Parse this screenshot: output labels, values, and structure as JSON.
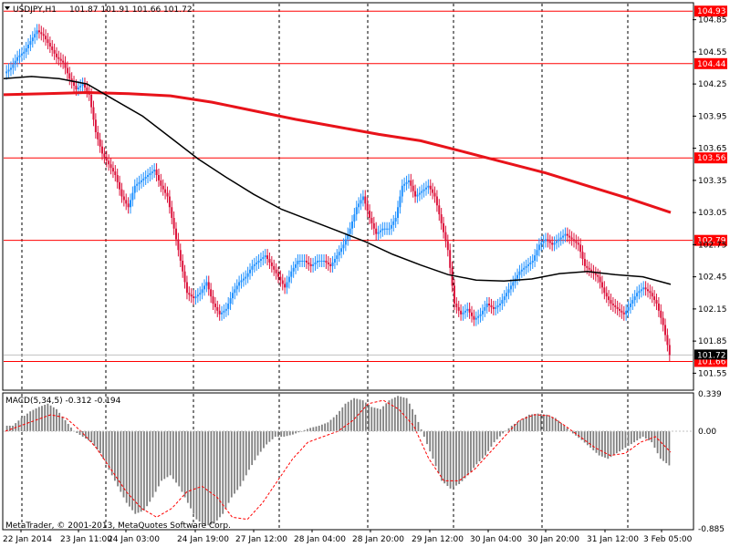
{
  "header": {
    "symbol_tf": "USDJPY,H1",
    "ohlc": "101.87 101.91 101.66 101.72"
  },
  "macd_header": "MACD(5,34,5) -0.312 -0.194",
  "watermark": "MetaTrader, © 2001-2013, MetaQuotes Software Corp.",
  "colors": {
    "up_candle": "#1e90ff",
    "down_candle": "#dc143c",
    "ma_fast": "#000000",
    "ma_slow": "#e8131a",
    "level": "#ff0000",
    "grid": "#000000",
    "macd_hist": "#808080",
    "macd_signal": "#ff0000"
  },
  "chart_data": [
    {
      "type": "candlestick",
      "title": "USDJPY,H1",
      "ylim": [
        101.4,
        105.0
      ],
      "y_ticks": [
        "104.85",
        "104.55",
        "104.25",
        "103.95",
        "103.65",
        "103.35",
        "103.05",
        "102.75",
        "102.45",
        "102.15",
        "101.85",
        "101.55"
      ],
      "x_labels": [
        "22 Jan 2014",
        "23 Jan 11:00",
        "24 Jan 03:00",
        "24 Jan 19:00",
        "27 Jan 12:00",
        "28 Jan 04:00",
        "28 Jan 20:00",
        "29 Jan 12:00",
        "30 Jan 04:00",
        "30 Jan 20:00",
        "31 Jan 12:00",
        "3 Feb 05:00"
      ],
      "levels": [
        {
          "label": "104.93",
          "value": 104.93
        },
        {
          "label": "104.44",
          "value": 104.44
        },
        {
          "label": "103.56",
          "value": 103.56
        },
        {
          "label": "102.79",
          "value": 102.79
        },
        {
          "label": "101.66",
          "value": 101.66
        }
      ],
      "current_price": "101.72",
      "close_series": [
        104.4,
        104.5,
        104.55,
        104.65,
        104.75,
        104.7,
        104.6,
        104.5,
        104.45,
        104.3,
        104.2,
        104.25,
        104.15,
        103.8,
        103.6,
        103.5,
        103.4,
        103.2,
        103.1,
        103.3,
        103.35,
        103.4,
        103.45,
        103.3,
        103.2,
        102.9,
        102.6,
        102.3,
        102.25,
        102.3,
        102.4,
        102.2,
        102.1,
        102.15,
        102.3,
        102.4,
        102.45,
        102.55,
        102.6,
        102.65,
        102.55,
        102.45,
        102.35,
        102.5,
        102.6,
        102.6,
        102.55,
        102.6,
        102.6,
        102.55,
        102.65,
        102.75,
        102.9,
        103.1,
        103.2,
        103.0,
        102.85,
        102.9,
        102.9,
        103.0,
        103.3,
        103.35,
        103.2,
        103.25,
        103.3,
        103.2,
        102.95,
        102.7,
        102.2,
        102.1,
        102.15,
        102.05,
        102.1,
        102.2,
        102.15,
        102.2,
        102.3,
        102.4,
        102.5,
        102.55,
        102.6,
        102.75,
        102.8,
        102.75,
        102.8,
        102.85,
        102.8,
        102.75,
        102.55,
        102.5,
        102.45,
        102.3,
        102.2,
        102.15,
        102.1,
        102.2,
        102.3,
        102.35,
        102.3,
        102.2,
        102.0,
        101.72
      ],
      "ma_fast_series": [
        104.3,
        104.32,
        104.3,
        104.25,
        104.1,
        103.95,
        103.75,
        103.55,
        103.38,
        103.22,
        103.08,
        102.98,
        102.88,
        102.78,
        102.66,
        102.56,
        102.47,
        102.42,
        102.41,
        102.43,
        102.48,
        102.5,
        102.47,
        102.45,
        102.38
      ],
      "ma_slow_series": [
        104.15,
        104.16,
        104.17,
        104.16,
        104.14,
        104.08,
        104.0,
        103.92,
        103.85,
        103.78,
        103.72,
        103.62,
        103.52,
        103.42,
        103.3,
        103.18,
        103.05
      ],
      "macd": {
        "ylim": [
          -0.885,
          0.339
        ],
        "y_ticks": [
          "0.339",
          "0.00",
          "-0.885"
        ],
        "hist": [
          0.05,
          0.12,
          0.18,
          0.22,
          0.25,
          0.2,
          0.1,
          0.0,
          -0.05,
          -0.1,
          -0.2,
          -0.35,
          -0.5,
          -0.65,
          -0.75,
          -0.72,
          -0.6,
          -0.45,
          -0.4,
          -0.5,
          -0.65,
          -0.8,
          -0.86,
          -0.84,
          -0.75,
          -0.6,
          -0.5,
          -0.35,
          -0.22,
          -0.12,
          -0.05,
          -0.05,
          -0.03,
          0.0,
          0.03,
          0.05,
          0.08,
          0.15,
          0.25,
          0.3,
          0.28,
          0.22,
          0.2,
          0.28,
          0.32,
          0.3,
          0.15,
          -0.05,
          -0.25,
          -0.45,
          -0.52,
          -0.48,
          -0.4,
          -0.3,
          -0.22,
          -0.1,
          -0.02,
          0.05,
          0.1,
          0.15,
          0.16,
          0.15,
          0.12,
          0.05,
          -0.02,
          -0.08,
          -0.15,
          -0.22,
          -0.25,
          -0.2,
          -0.15,
          -0.1,
          -0.05,
          -0.1,
          -0.25,
          -0.31
        ],
        "signal": [
          0.0,
          0.05,
          0.1,
          0.15,
          0.12,
          0.0,
          -0.15,
          -0.35,
          -0.55,
          -0.7,
          -0.78,
          -0.7,
          -0.55,
          -0.5,
          -0.6,
          -0.78,
          -0.8,
          -0.65,
          -0.45,
          -0.25,
          -0.1,
          -0.05,
          0.0,
          0.1,
          0.25,
          0.28,
          0.2,
          0.05,
          -0.25,
          -0.45,
          -0.45,
          -0.35,
          -0.2,
          -0.05,
          0.1,
          0.15,
          0.14,
          0.05,
          -0.05,
          -0.15,
          -0.22,
          -0.2,
          -0.1,
          -0.05,
          -0.19
        ]
      }
    }
  ]
}
